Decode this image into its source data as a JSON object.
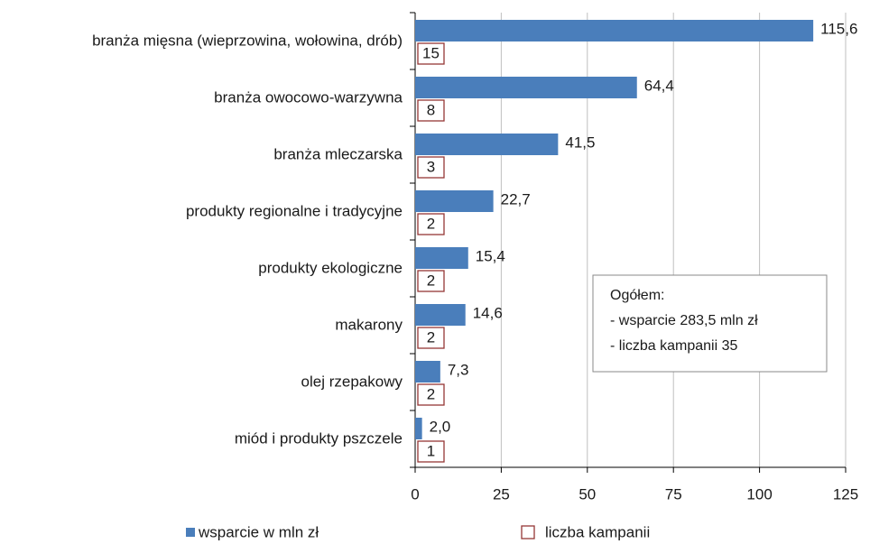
{
  "chart_data": {
    "type": "bar",
    "orientation": "horizontal",
    "categories": [
      "branża mięsna (wieprzowina, wołowina, drób)",
      "branża owocowo-warzywna",
      "branża mleczarska",
      "produkty regionalne i tradycyjne",
      "produkty ekologiczne",
      "makarony",
      "olej rzepakowy",
      "miód i produkty pszczele"
    ],
    "series": [
      {
        "name": "wsparcie w mln zł",
        "color": "#4a7ebb",
        "values": [
          115.6,
          64.4,
          41.5,
          22.7,
          15.4,
          14.6,
          7.3,
          2.0
        ],
        "value_labels": [
          "115,6",
          "64,4",
          "41,5",
          "22,7",
          "15,4",
          "14,6",
          "7,3",
          "2,0"
        ]
      },
      {
        "name": "liczba kampanii",
        "color": "#953735",
        "values": [
          15,
          8,
          3,
          2,
          2,
          2,
          2,
          1
        ]
      }
    ],
    "xlim": [
      0,
      125
    ],
    "xticks": [
      0,
      25,
      50,
      75,
      100,
      125
    ],
    "grid": true,
    "annotation": [
      "Ogółem:",
      "- wsparcie 283,5 mln zł",
      "- liczba kampanii 35"
    ]
  }
}
